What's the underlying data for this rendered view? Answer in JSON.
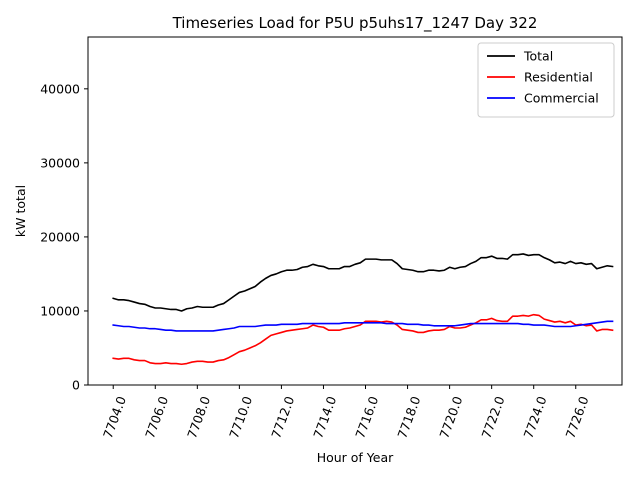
{
  "chart_data": {
    "type": "line",
    "title": "Timeseries Load for P5U p5uhs17_1247  Day 322",
    "xlabel": "Hour of Year",
    "ylabel": "kW total",
    "xlim": [
      7702.8,
      7728.2
    ],
    "ylim": [
      0,
      47000
    ],
    "x_ticks": [
      7704,
      7706,
      7708,
      7710,
      7712,
      7714,
      7716,
      7718,
      7720,
      7722,
      7724,
      7726
    ],
    "x_tick_labels": [
      "7704.0",
      "7706.0",
      "7708.0",
      "7710.0",
      "7712.0",
      "7714.0",
      "7716.0",
      "7718.0",
      "7720.0",
      "7722.0",
      "7724.0",
      "7726.0"
    ],
    "y_ticks": [
      0,
      10000,
      20000,
      30000,
      40000
    ],
    "y_tick_labels": [
      "0",
      "10000",
      "20000",
      "30000",
      "40000"
    ],
    "legend_location": "upper right",
    "x_start": 7704.0,
    "x_step": 0.25,
    "series": [
      {
        "name": "Total",
        "color": "#000000",
        "values": [
          11700,
          11500,
          11500,
          11400,
          11200,
          11000,
          10900,
          10600,
          10400,
          10400,
          10300,
          10200,
          10200,
          10000,
          10300,
          10400,
          10600,
          10500,
          10500,
          10500,
          10800,
          11000,
          11500,
          12000,
          12500,
          12700,
          13000,
          13300,
          13900,
          14400,
          14800,
          15000,
          15300,
          15500,
          15500,
          15600,
          15900,
          16000,
          16300,
          16100,
          16000,
          15700,
          15700,
          15700,
          16000,
          16000,
          16300,
          16500,
          17000,
          17000,
          17000,
          16900,
          16900,
          16900,
          16400,
          15700,
          15600,
          15500,
          15300,
          15300,
          15500,
          15500,
          15400,
          15500,
          15900,
          15700,
          15900,
          16000,
          16400,
          16700,
          17200,
          17200,
          17400,
          17100,
          17100,
          17000,
          17600,
          17600,
          17700,
          17500,
          17600,
          17600,
          17200,
          16900,
          16500,
          16600,
          16400,
          16700,
          16400,
          16500,
          16300,
          16400,
          15700,
          15900,
          16100,
          16000
        ]
      },
      {
        "name": "Residential",
        "color": "#ff0000",
        "values": [
          3600,
          3500,
          3600,
          3600,
          3400,
          3300,
          3300,
          3000,
          2900,
          2900,
          3000,
          2900,
          2900,
          2800,
          2900,
          3100,
          3200,
          3200,
          3100,
          3100,
          3300,
          3400,
          3700,
          4100,
          4500,
          4700,
          5000,
          5300,
          5700,
          6200,
          6700,
          6900,
          7100,
          7300,
          7400,
          7500,
          7600,
          7700,
          8100,
          7900,
          7800,
          7400,
          7400,
          7400,
          7600,
          7700,
          7900,
          8100,
          8600,
          8600,
          8600,
          8500,
          8600,
          8500,
          8100,
          7500,
          7400,
          7300,
          7100,
          7100,
          7300,
          7400,
          7400,
          7500,
          7900,
          7700,
          7700,
          7800,
          8100,
          8400,
          8800,
          8800,
          9000,
          8700,
          8600,
          8600,
          9300,
          9300,
          9400,
          9300,
          9500,
          9400,
          8900,
          8700,
          8500,
          8600,
          8400,
          8600,
          8100,
          8200,
          8000,
          8100,
          7300,
          7500,
          7500,
          7400
        ]
      },
      {
        "name": "Commercial",
        "color": "#0000ff",
        "values": [
          8100,
          8000,
          7900,
          7900,
          7800,
          7700,
          7700,
          7600,
          7600,
          7500,
          7400,
          7400,
          7300,
          7300,
          7300,
          7300,
          7300,
          7300,
          7300,
          7300,
          7400,
          7500,
          7600,
          7700,
          7900,
          7900,
          7900,
          7900,
          8000,
          8100,
          8100,
          8100,
          8200,
          8200,
          8200,
          8200,
          8300,
          8300,
          8300,
          8300,
          8300,
          8300,
          8300,
          8300,
          8400,
          8400,
          8400,
          8400,
          8400,
          8400,
          8400,
          8400,
          8300,
          8300,
          8300,
          8300,
          8200,
          8200,
          8200,
          8100,
          8100,
          8000,
          8000,
          8000,
          8000,
          8000,
          8100,
          8200,
          8300,
          8300,
          8300,
          8300,
          8300,
          8300,
          8300,
          8300,
          8300,
          8300,
          8200,
          8200,
          8100,
          8100,
          8100,
          8000,
          7900,
          7900,
          7900,
          7900,
          8000,
          8100,
          8200,
          8300,
          8400,
          8500,
          8600,
          8600
        ]
      }
    ]
  }
}
